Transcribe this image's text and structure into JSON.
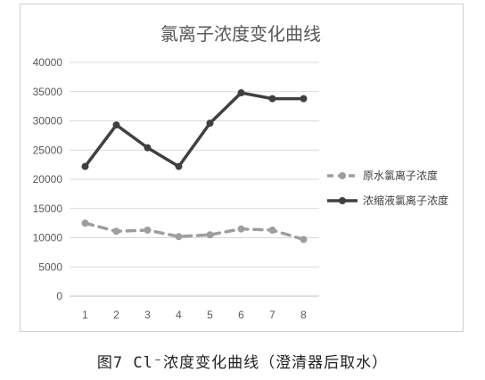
{
  "caption": "图7 Cl⁻浓度变化曲线（澄清器后取水）",
  "chart_data": {
    "type": "line",
    "title": "氯离子浓度变化曲线",
    "xlabel": "",
    "ylabel": "",
    "categories": [
      "1",
      "2",
      "3",
      "4",
      "5",
      "6",
      "7",
      "8"
    ],
    "ylim": [
      0,
      40000
    ],
    "yticks": [
      0,
      5000,
      10000,
      15000,
      20000,
      25000,
      30000,
      35000,
      40000
    ],
    "grid": true,
    "legend": "right",
    "series": [
      {
        "name": "原水氯离子浓度",
        "values": [
          12500,
          11100,
          11300,
          10200,
          10500,
          11500,
          11300,
          9700
        ],
        "color": "#9e9e9e",
        "style": "dashed"
      },
      {
        "name": "浓缩液氯离子浓度",
        "values": [
          22200,
          29300,
          25400,
          22200,
          29600,
          34800,
          33800,
          33800
        ],
        "color": "#404040",
        "style": "solid"
      }
    ]
  }
}
